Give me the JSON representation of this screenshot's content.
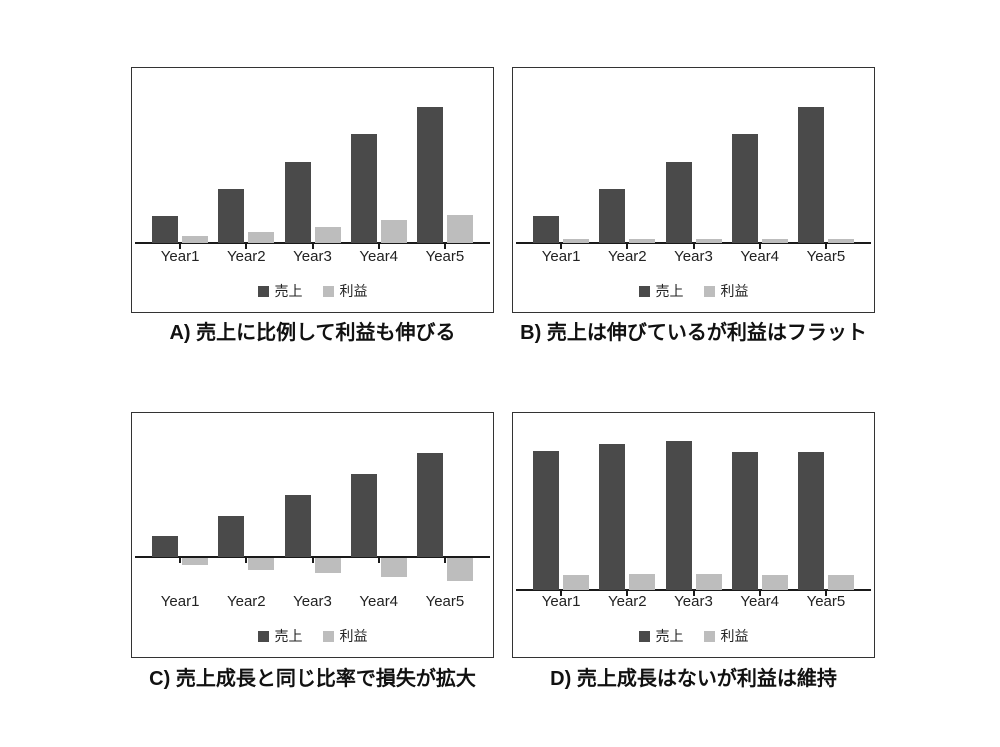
{
  "page": {
    "background": "#ffffff"
  },
  "colors": {
    "sales_bar": "#4a4a4a",
    "profit_bar": "#bdbdbd",
    "axis": "#1a1a1a",
    "panel_border": "#333333",
    "label_text": "#222222",
    "caption_text": "#111111"
  },
  "chart_data": [
    {
      "id": "A",
      "type": "bar",
      "caption": "A) 売上に比例して利益も伸びる",
      "categories": [
        "Year1",
        "Year2",
        "Year3",
        "Year4",
        "Year5"
      ],
      "series": [
        {
          "name": "売上",
          "color": "#4a4a4a",
          "values": [
            20,
            40,
            60,
            80,
            100
          ]
        },
        {
          "name": "利益",
          "color": "#bdbdbd",
          "values": [
            5,
            8,
            12,
            17,
            21
          ]
        }
      ],
      "ylim": [
        0,
        129
      ],
      "grid": false,
      "legend_position": "bottom"
    },
    {
      "id": "B",
      "type": "bar",
      "caption": "B) 売上は伸びているが利益はフラット",
      "categories": [
        "Year1",
        "Year2",
        "Year3",
        "Year4",
        "Year5"
      ],
      "series": [
        {
          "name": "売上",
          "color": "#4a4a4a",
          "values": [
            20,
            40,
            60,
            80,
            100
          ]
        },
        {
          "name": "利益",
          "color": "#bdbdbd",
          "values": [
            3,
            3,
            3,
            3,
            3
          ]
        }
      ],
      "ylim": [
        0,
        129
      ],
      "grid": false,
      "legend_position": "bottom"
    },
    {
      "id": "C",
      "type": "bar",
      "caption": "C) 売上成長と同じ比率で損失が拡大",
      "categories": [
        "Year1",
        "Year2",
        "Year3",
        "Year4",
        "Year5"
      ],
      "series": [
        {
          "name": "売上",
          "color": "#4a4a4a",
          "values": [
            20,
            40,
            60,
            80,
            100
          ]
        },
        {
          "name": "利益",
          "color": "#bdbdbd",
          "values": [
            -7,
            -11,
            -14,
            -18,
            -22
          ]
        }
      ],
      "ylim": [
        -23,
        139
      ],
      "grid": false,
      "legend_position": "bottom"
    },
    {
      "id": "D",
      "type": "bar",
      "caption": "D) 売上成長はないが利益は維持",
      "categories": [
        "Year1",
        "Year2",
        "Year3",
        "Year4",
        "Year5"
      ],
      "series": [
        {
          "name": "売上",
          "color": "#4a4a4a",
          "values": [
            95,
            100,
            102,
            94,
            94
          ]
        },
        {
          "name": "利益",
          "color": "#bdbdbd",
          "values": [
            10,
            11,
            11,
            10,
            10
          ]
        }
      ],
      "ylim": [
        0,
        121
      ],
      "grid": false,
      "legend_position": "bottom"
    }
  ]
}
